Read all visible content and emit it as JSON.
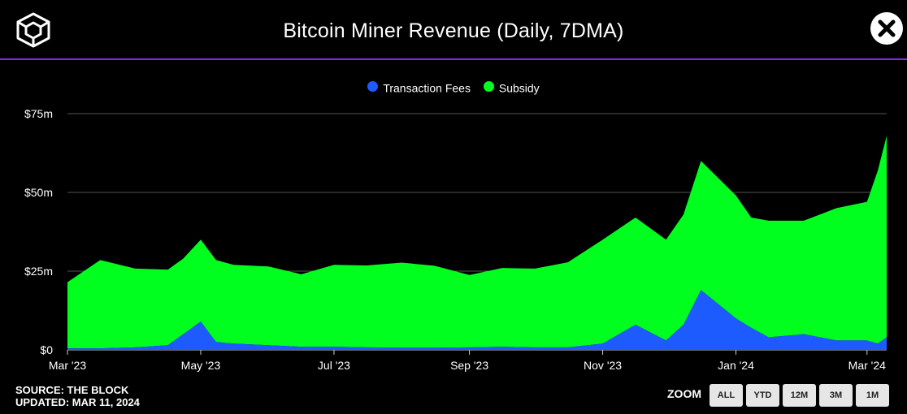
{
  "header": {
    "title": "Bitcoin Miner Revenue (Daily, 7DMA)",
    "logo_icon": "the-block-cube-logo-icon",
    "close_icon": "close-x-icon"
  },
  "legend": {
    "items": [
      {
        "label": "Transaction Fees",
        "color": "#1e5bff"
      },
      {
        "label": "Subsidy",
        "color": "#00ff1e"
      }
    ]
  },
  "chart_data": {
    "type": "area",
    "stacked": true,
    "title": "Bitcoin Miner Revenue (Daily, 7DMA)",
    "xlabel": "",
    "ylabel": "",
    "x_tick_labels": [
      "Mar '23",
      "May '23",
      "Jul '23",
      "Sep '23",
      "Nov '23",
      "Jan '24",
      "Mar '24"
    ],
    "y_tick_labels": [
      "$0",
      "$25m",
      "$50m",
      "$75m"
    ],
    "y_ticks": [
      0,
      25,
      50,
      75
    ],
    "ylim": [
      0,
      75
    ],
    "x_range": [
      "2023-03-01",
      "2024-03-10"
    ],
    "grid": true,
    "legend_position": "top-center",
    "dates": [
      "2023-03-01",
      "2023-03-16",
      "2023-04-01",
      "2023-04-16",
      "2023-04-23",
      "2023-05-01",
      "2023-05-08",
      "2023-05-16",
      "2023-06-01",
      "2023-06-16",
      "2023-07-01",
      "2023-07-16",
      "2023-08-01",
      "2023-08-16",
      "2023-09-01",
      "2023-09-16",
      "2023-10-01",
      "2023-10-16",
      "2023-11-01",
      "2023-11-16",
      "2023-11-30",
      "2023-12-08",
      "2023-12-16",
      "2024-01-01",
      "2024-01-08",
      "2024-01-16",
      "2024-02-01",
      "2024-02-16",
      "2024-03-01",
      "2024-03-06",
      "2024-03-10"
    ],
    "series": [
      {
        "name": "Transaction Fees",
        "color": "#1e5bff",
        "values": [
          0.5,
          0.5,
          0.8,
          1.5,
          5,
          9,
          2.5,
          2,
          1.5,
          1,
          1,
          0.8,
          0.7,
          0.7,
          0.8,
          1,
          0.8,
          0.8,
          2,
          8,
          3,
          8,
          19,
          10,
          7,
          4,
          5,
          3,
          3,
          2,
          4
        ]
      },
      {
        "name": "Subsidy",
        "color": "#00ff1e",
        "values": [
          21,
          28,
          25,
          24,
          24,
          26,
          26,
          25,
          25,
          23,
          26,
          26,
          27,
          26,
          23,
          25,
          25,
          27,
          33,
          34,
          32,
          35,
          41,
          39,
          35,
          37,
          36,
          42,
          44,
          55,
          64
        ]
      }
    ]
  },
  "footer": {
    "source": "SOURCE: THE BLOCK",
    "updated": "UPDATED: MAR 11, 2024"
  },
  "zoom": {
    "label": "ZOOM",
    "buttons": [
      "ALL",
      "YTD",
      "12M",
      "3M",
      "1M"
    ]
  }
}
